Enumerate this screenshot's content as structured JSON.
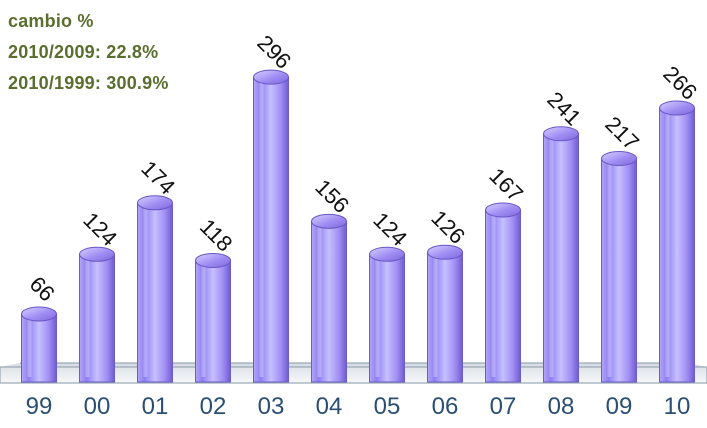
{
  "notes": {
    "line1": "cambio %",
    "line2": "2010/2009: 22.8%",
    "line3": "2010/1999: 300.9%"
  },
  "colors": {
    "note_text": "#5a6e2e",
    "bar_fill": "#8a78f0",
    "tick_text": "#2a4f73"
  },
  "chart_data": {
    "type": "bar",
    "categories": [
      "99",
      "00",
      "01",
      "02",
      "03",
      "04",
      "05",
      "06",
      "07",
      "08",
      "09",
      "10"
    ],
    "values": [
      66,
      124,
      174,
      118,
      296,
      156,
      124,
      126,
      167,
      241,
      217,
      266
    ],
    "title": "",
    "xlabel": "",
    "ylabel": "",
    "ylim": [
      0,
      300
    ],
    "grid": false,
    "legend": "none"
  }
}
